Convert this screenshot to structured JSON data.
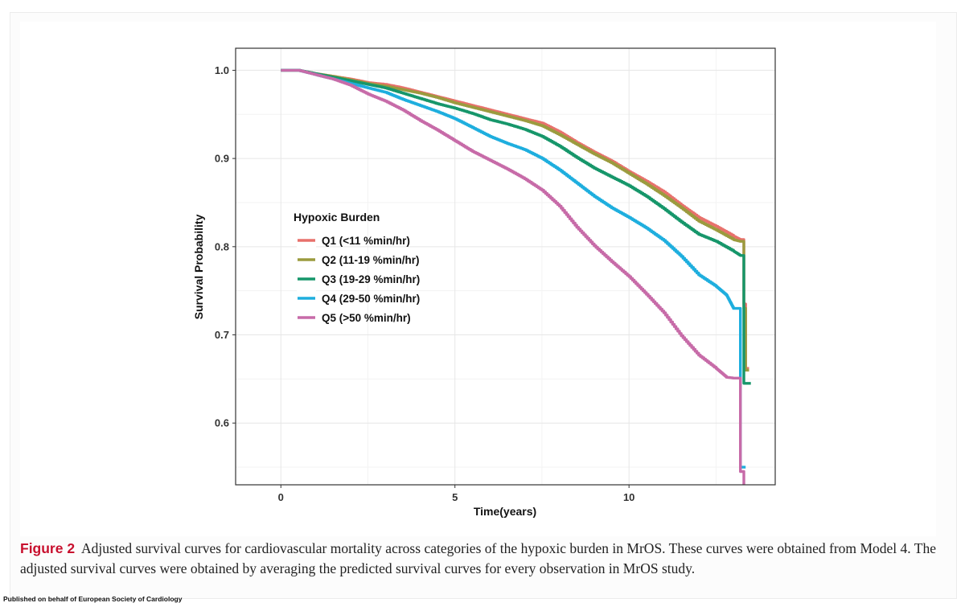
{
  "figure": {
    "label": "Figure 2",
    "caption": "Adjusted survival curves for cardiovascular mortality across categories of the hypoxic burden in MrOS. These curves were obtained from Model 4. The adjusted survival curves were obtained by averaging the predicted survival curves for every observation in MrOS study."
  },
  "footer": "Published on behalf of European Society of Cardiology",
  "chart_data": {
    "type": "line",
    "title": "",
    "xlabel": "Time(years)",
    "ylabel": "Survival Probability",
    "xlim": [
      -1.3,
      14.2
    ],
    "ylim": [
      0.53,
      1.025
    ],
    "x_ticks": [
      0,
      5,
      10
    ],
    "x_tick_labels": [
      "0",
      "5",
      "10"
    ],
    "y_ticks": [
      0.6,
      0.7,
      0.8,
      0.9,
      1.0
    ],
    "y_tick_labels": [
      "0.6",
      "0.7",
      "0.8",
      "0.9",
      "1.0"
    ],
    "grid": true,
    "legend_title": "Hypoxic Burden",
    "legend_position": "center-left",
    "series": [
      {
        "name": "Q1 (<11 %min/hr)",
        "color": "#e8716c",
        "points": [
          [
            0,
            1.0
          ],
          [
            0.5,
            1.0
          ],
          [
            1,
            0.996
          ],
          [
            1.5,
            0.993
          ],
          [
            2,
            0.99
          ],
          [
            2.5,
            0.986
          ],
          [
            3,
            0.984
          ],
          [
            3.5,
            0.98
          ],
          [
            4,
            0.975
          ],
          [
            4.5,
            0.97
          ],
          [
            5,
            0.965
          ],
          [
            5.5,
            0.96
          ],
          [
            6,
            0.955
          ],
          [
            6.5,
            0.95
          ],
          [
            7,
            0.945
          ],
          [
            7.5,
            0.94
          ],
          [
            8,
            0.93
          ],
          [
            8.5,
            0.918
          ],
          [
            9,
            0.907
          ],
          [
            9.5,
            0.897
          ],
          [
            10,
            0.885
          ],
          [
            10.5,
            0.874
          ],
          [
            11,
            0.862
          ],
          [
            11.5,
            0.847
          ],
          [
            12,
            0.833
          ],
          [
            12.5,
            0.823
          ],
          [
            13,
            0.812
          ],
          [
            13.2,
            0.808
          ],
          [
            13.2,
            0.808
          ],
          [
            13.3,
            0.808
          ],
          [
            13.3,
            0.735
          ],
          [
            13.35,
            0.735
          ],
          [
            13.35,
            0.662
          ],
          [
            13.45,
            0.662
          ]
        ]
      },
      {
        "name": "Q2 (11-19 %min/hr)",
        "color": "#9b9b3e",
        "points": [
          [
            0,
            1.0
          ],
          [
            0.5,
            1.0
          ],
          [
            1,
            0.996
          ],
          [
            1.5,
            0.993
          ],
          [
            2,
            0.989
          ],
          [
            2.5,
            0.985
          ],
          [
            3,
            0.982
          ],
          [
            3.5,
            0.978
          ],
          [
            4,
            0.974
          ],
          [
            4.5,
            0.969
          ],
          [
            5,
            0.963
          ],
          [
            5.5,
            0.958
          ],
          [
            6,
            0.953
          ],
          [
            6.5,
            0.948
          ],
          [
            7,
            0.943
          ],
          [
            7.5,
            0.937
          ],
          [
            8,
            0.927
          ],
          [
            8.5,
            0.916
          ],
          [
            9,
            0.905
          ],
          [
            9.5,
            0.895
          ],
          [
            10,
            0.883
          ],
          [
            10.5,
            0.871
          ],
          [
            11,
            0.858
          ],
          [
            11.5,
            0.844
          ],
          [
            12,
            0.829
          ],
          [
            12.5,
            0.819
          ],
          [
            13,
            0.808
          ],
          [
            13.2,
            0.806
          ],
          [
            13.3,
            0.806
          ],
          [
            13.3,
            0.73
          ],
          [
            13.35,
            0.73
          ],
          [
            13.35,
            0.66
          ],
          [
            13.45,
            0.66
          ]
        ]
      },
      {
        "name": "Q3 (19-29 %min/hr)",
        "color": "#16966a",
        "points": [
          [
            0,
            1.0
          ],
          [
            0.5,
            1.0
          ],
          [
            1,
            0.996
          ],
          [
            1.5,
            0.992
          ],
          [
            2,
            0.988
          ],
          [
            2.5,
            0.984
          ],
          [
            3,
            0.98
          ],
          [
            3.5,
            0.974
          ],
          [
            4,
            0.968
          ],
          [
            4.5,
            0.962
          ],
          [
            5,
            0.957
          ],
          [
            5.5,
            0.951
          ],
          [
            6,
            0.944
          ],
          [
            6.5,
            0.939
          ],
          [
            7,
            0.933
          ],
          [
            7.5,
            0.925
          ],
          [
            8,
            0.914
          ],
          [
            8.5,
            0.901
          ],
          [
            9,
            0.889
          ],
          [
            9.5,
            0.879
          ],
          [
            10,
            0.869
          ],
          [
            10.5,
            0.857
          ],
          [
            11,
            0.843
          ],
          [
            11.5,
            0.828
          ],
          [
            12,
            0.814
          ],
          [
            12.5,
            0.806
          ],
          [
            13,
            0.795
          ],
          [
            13.2,
            0.79
          ],
          [
            13.3,
            0.79
          ],
          [
            13.3,
            0.645
          ],
          [
            13.5,
            0.645
          ]
        ]
      },
      {
        "name": "Q4 (29-50 %min/hr)",
        "color": "#1eaede",
        "points": [
          [
            0,
            1.0
          ],
          [
            0.5,
            1.0
          ],
          [
            1,
            0.995
          ],
          [
            1.5,
            0.99
          ],
          [
            2,
            0.985
          ],
          [
            2.5,
            0.98
          ],
          [
            3,
            0.975
          ],
          [
            3.5,
            0.967
          ],
          [
            4,
            0.96
          ],
          [
            4.5,
            0.953
          ],
          [
            5,
            0.945
          ],
          [
            5.5,
            0.935
          ],
          [
            6,
            0.925
          ],
          [
            6.5,
            0.917
          ],
          [
            7,
            0.91
          ],
          [
            7.5,
            0.9
          ],
          [
            8,
            0.887
          ],
          [
            8.5,
            0.872
          ],
          [
            9,
            0.857
          ],
          [
            9.5,
            0.844
          ],
          [
            10,
            0.833
          ],
          [
            10.5,
            0.821
          ],
          [
            11,
            0.807
          ],
          [
            11.5,
            0.789
          ],
          [
            12,
            0.768
          ],
          [
            12.5,
            0.755
          ],
          [
            12.8,
            0.745
          ],
          [
            13,
            0.73
          ],
          [
            13.2,
            0.73
          ],
          [
            13.2,
            0.55
          ],
          [
            13.35,
            0.55
          ]
        ]
      },
      {
        "name": "Q5 (>50 %min/hr)",
        "color": "#c76ba8",
        "points": [
          [
            0,
            1.0
          ],
          [
            0.5,
            1.0
          ],
          [
            1,
            0.995
          ],
          [
            1.5,
            0.99
          ],
          [
            2,
            0.983
          ],
          [
            2.5,
            0.973
          ],
          [
            3,
            0.965
          ],
          [
            3.5,
            0.955
          ],
          [
            4,
            0.943
          ],
          [
            4.5,
            0.932
          ],
          [
            5,
            0.92
          ],
          [
            5.5,
            0.908
          ],
          [
            6,
            0.898
          ],
          [
            6.5,
            0.888
          ],
          [
            7,
            0.877
          ],
          [
            7.5,
            0.864
          ],
          [
            8,
            0.846
          ],
          [
            8.5,
            0.822
          ],
          [
            9,
            0.801
          ],
          [
            9.5,
            0.783
          ],
          [
            10,
            0.766
          ],
          [
            10.5,
            0.746
          ],
          [
            11,
            0.725
          ],
          [
            11.5,
            0.699
          ],
          [
            12,
            0.677
          ],
          [
            12.5,
            0.662
          ],
          [
            12.8,
            0.652
          ],
          [
            13,
            0.651
          ],
          [
            13.2,
            0.651
          ],
          [
            13.2,
            0.545
          ],
          [
            13.3,
            0.545
          ],
          [
            13.3,
            0.53
          ]
        ]
      }
    ]
  }
}
